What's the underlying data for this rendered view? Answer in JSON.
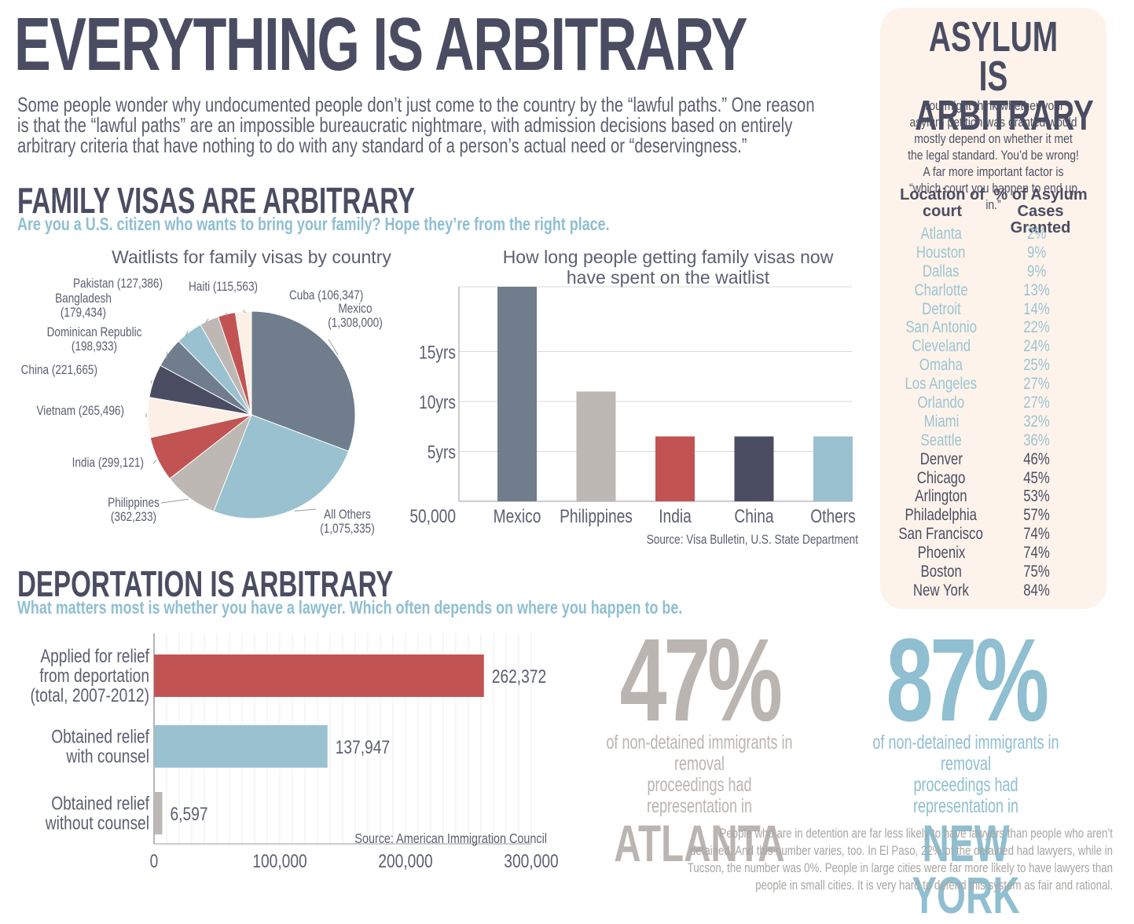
{
  "main_title": "EVERYTHING IS ARBITRARY",
  "intro": "Some people wonder why undocumented people don’t just come to the country by the “lawful paths.” One reason is that the “lawful paths” are an impossible bureaucratic nightmare, with admission decisions based on entirely arbitrary criteria that have nothing to do with any standard of a person’s actual need or “deservingness.”",
  "family": {
    "title": "FAMILY VISAS ARE ARBITRARY",
    "subtitle": "Are you a U.S. citizen who wants to bring your family? Hope they’re from the right place."
  },
  "deportation": {
    "title": "DEPORTATION IS ARBITRARY",
    "subtitle": "What matters most is whether you have a lawyer. Which often depends on where you happen to be."
  },
  "asylum": {
    "title_line1": "ASYLUM IS",
    "title_line2": "ARBITRARY",
    "intro": "You might think whether your asylum petition was granted would mostly depend on whether it met the legal standard. You’d be wrong! A far more important factor is “which court you happen to end up in.”",
    "col1_line1": "Location of",
    "col1_line2": "court",
    "col2_line1": "% of Asylum",
    "col2_line2": "Cases Granted",
    "rows": [
      {
        "city": "Atlanta",
        "pct": "2%"
      },
      {
        "city": "Houston",
        "pct": "9%"
      },
      {
        "city": "Dallas",
        "pct": "9%"
      },
      {
        "city": "Charlotte",
        "pct": "13%"
      },
      {
        "city": "Detroit",
        "pct": "14%"
      },
      {
        "city": "San Antonio",
        "pct": "22%"
      },
      {
        "city": "Cleveland",
        "pct": "24%"
      },
      {
        "city": "Omaha",
        "pct": "25%"
      },
      {
        "city": "Los Angeles",
        "pct": "27%"
      },
      {
        "city": "Orlando",
        "pct": "27%"
      },
      {
        "city": "Miami",
        "pct": "32%"
      },
      {
        "city": "Seattle",
        "pct": "36%"
      },
      {
        "city": "Denver",
        "pct": "46%"
      },
      {
        "city": "Chicago",
        "pct": "45%"
      },
      {
        "city": "Arlington",
        "pct": "53%"
      },
      {
        "city": "Philadelphia",
        "pct": "57%"
      },
      {
        "city": "San Francisco",
        "pct": "74%"
      },
      {
        "city": "Phoenix",
        "pct": "74%"
      },
      {
        "city": "Boston",
        "pct": "75%"
      },
      {
        "city": "New York",
        "pct": "84%"
      }
    ],
    "color_light": "#9cc4d3",
    "color_dark": "#4a4d62"
  },
  "stats": [
    {
      "pct": "47%",
      "line1": "of non-detained immigrants in removal",
      "line2": "proceedings had representation in",
      "city": "ATLANTA",
      "color": "#bbb5b1"
    },
    {
      "pct": "87%",
      "line1": "of non-detained immigrants in removal",
      "line2": "proceedings had representation in",
      "city": "NEW YORK",
      "color": "#8fbfd0"
    }
  ],
  "footnote": "People who are in detention are far less likely to have lawyers than people who aren’t detained. And this number varies, too. In El Paso, 22% of the detained had lawyers, while in Tucson, the number was 0%. People in large cities were far more likely to have lawyers than people in small cities. It is very hard to defend this system as fair and rational.",
  "chart_data": [
    {
      "type": "pie",
      "title": "Waitlists for family visas by country",
      "slices": [
        {
          "label": "Mexico",
          "value": 1308000,
          "label_text": "(1,308,000)",
          "color": "#6f7d8c"
        },
        {
          "label": "All Others",
          "value": 1075335,
          "label_text": "(1,075,335)",
          "color": "#99c1cf"
        },
        {
          "label": "Philippines",
          "value": 362233,
          "label_text": "(362,233)",
          "color": "#bdb8b4"
        },
        {
          "label": "India",
          "value": 299121,
          "label_text": "India (299,121)",
          "color": "#c15452"
        },
        {
          "label": "Vietnam",
          "value": 265496,
          "label_text": "Vietnam (265,496)",
          "color": "#fcf0e6"
        },
        {
          "label": "China",
          "value": 221665,
          "label_text": "China (221,665)",
          "color": "#4a4d62"
        },
        {
          "label": "Dominican Republic",
          "value": 198933,
          "label_text": "(198,933)",
          "color": "#6f7d8c"
        },
        {
          "label": "Bangladesh",
          "value": 179434,
          "label_text": "(179,434)",
          "color": "#99c1cf"
        },
        {
          "label": "Pakistan",
          "value": 127386,
          "label_text": "Pakistan (127,386)",
          "color": "#bdb8b4"
        },
        {
          "label": "Haiti",
          "value": 115563,
          "label_text": "Haiti (115,563)",
          "color": "#c15452"
        },
        {
          "label": "Cuba",
          "value": 106347,
          "label_text": "Cuba (106,347)",
          "color": "#fcf0e6"
        }
      ]
    },
    {
      "type": "bar",
      "title_line1": "How long people getting family visas now",
      "title_line2": "have spent on the waitlist",
      "categories": [
        "Mexico",
        "Philippines",
        "India",
        "China",
        "Others"
      ],
      "values": [
        21.5,
        11,
        6.5,
        6.5,
        6.5
      ],
      "colors": [
        "#6f7d8c",
        "#bdb8b4",
        "#c15452",
        "#4a4d62",
        "#99c1cf"
      ],
      "ytick_labels": [
        "5yrs",
        "10yrs",
        "15yrs"
      ],
      "ytick_values": [
        5,
        10,
        15
      ],
      "baseline_label": "50,000",
      "ylim": [
        0,
        21.5
      ],
      "source": "Source: Visa Bulletin, U.S. State Department"
    },
    {
      "type": "bar",
      "orientation": "horizontal",
      "categories": [
        {
          "line1": "Applied for relief",
          "line2": "from deportation",
          "line3": "(total, 2007-2012)"
        },
        {
          "line1": "Obtained relief",
          "line2": "with counsel",
          "line3": ""
        },
        {
          "line1": "Obtained relief",
          "line2": "without counsel",
          "line3": ""
        }
      ],
      "values": [
        262372,
        137947,
        6597
      ],
      "value_labels": [
        "262,372",
        "137,947",
        "6,597"
      ],
      "colors": [
        "#c15452",
        "#99c1cf",
        "#bdb8b4"
      ],
      "xticks": [
        0,
        100000,
        200000,
        300000
      ],
      "xtick_labels": [
        "0",
        "100,000",
        "200,000",
        "300,000"
      ],
      "xlim": [
        0,
        300000
      ],
      "source": "Source: American Immigration Council"
    }
  ]
}
